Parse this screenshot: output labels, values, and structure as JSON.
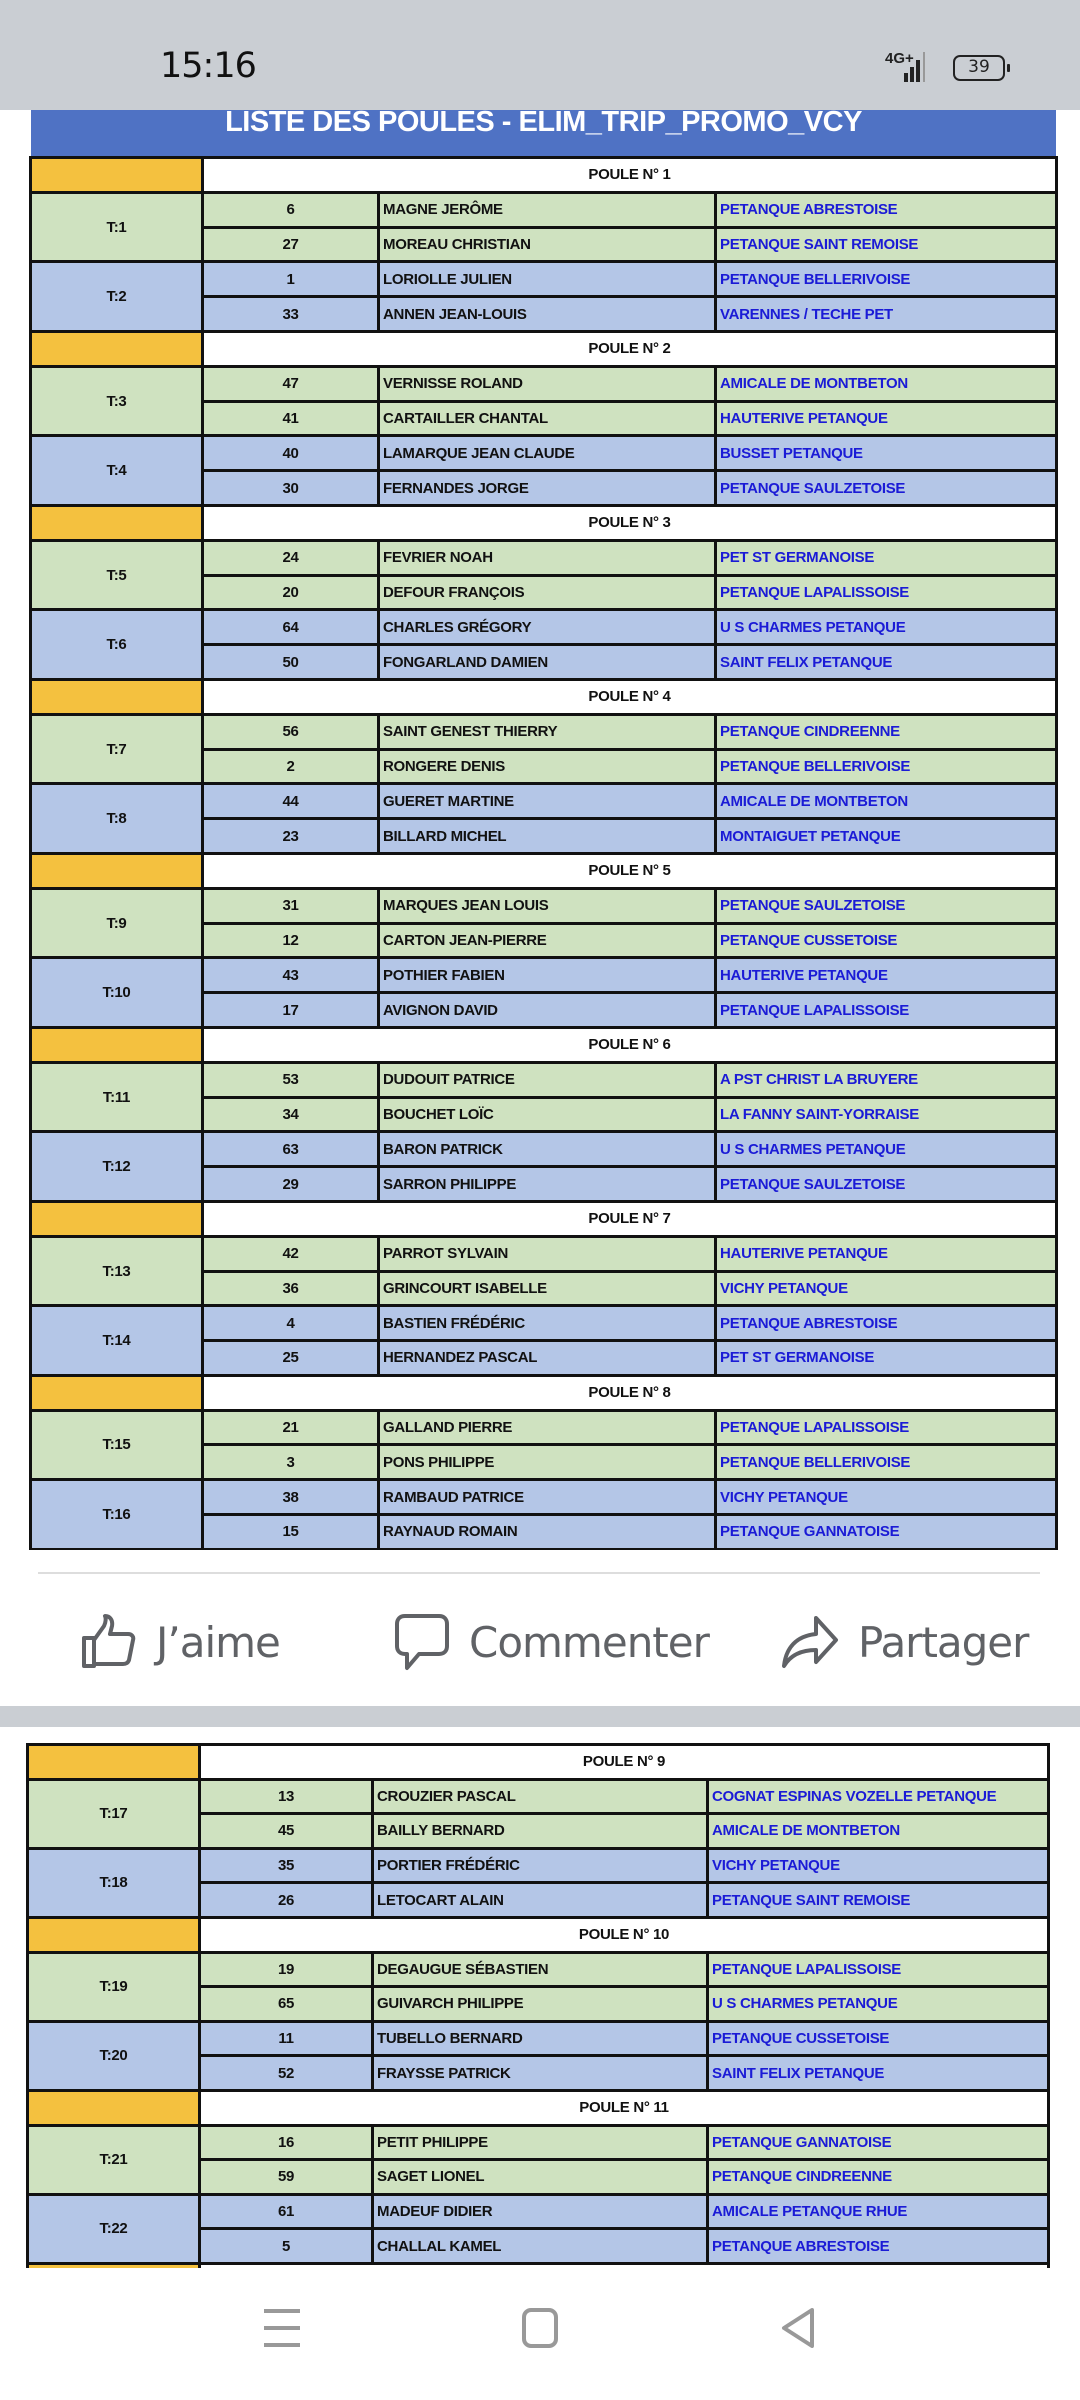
{
  "status_bar": {
    "time": "15:16",
    "network": "4G+",
    "battery": "39"
  },
  "sheet_title": "LISTE DES POULES - ELIM_TRIP_PROMO_VCY",
  "colors": {
    "banner": "#4f72c4",
    "poule_marker": "#f4c13f",
    "team_odd": "#cfe2c0",
    "team_even": "#b4c6e7",
    "club_text": "#1b1bd6"
  },
  "post1": {
    "poules": [
      {
        "label": "POULE N° 1",
        "teams": [
          {
            "table": "T:1",
            "players": [
              {
                "num": "6",
                "name": "MAGNE JERÔME",
                "club": "PETANQUE ABRESTOISE"
              },
              {
                "num": "27",
                "name": "MOREAU CHRISTIAN",
                "club": "PETANQUE SAINT REMOISE"
              }
            ]
          },
          {
            "table": "T:2",
            "players": [
              {
                "num": "1",
                "name": "LORIOLLE JULIEN",
                "club": "PETANQUE BELLERIVOISE"
              },
              {
                "num": "33",
                "name": "ANNEN JEAN-LOUIS",
                "club": "VARENNES / TECHE PET"
              }
            ]
          }
        ]
      },
      {
        "label": "POULE N° 2",
        "teams": [
          {
            "table": "T:3",
            "players": [
              {
                "num": "47",
                "name": "VERNISSE ROLAND",
                "club": "AMICALE DE MONTBETON"
              },
              {
                "num": "41",
                "name": "CARTAILLER CHANTAL",
                "club": "HAUTERIVE PETANQUE"
              }
            ]
          },
          {
            "table": "T:4",
            "players": [
              {
                "num": "40",
                "name": "LAMARQUE JEAN CLAUDE",
                "club": "BUSSET PETANQUE"
              },
              {
                "num": "30",
                "name": "FERNANDES JORGE",
                "club": "PETANQUE SAULZETOISE"
              }
            ]
          }
        ]
      },
      {
        "label": "POULE N° 3",
        "teams": [
          {
            "table": "T:5",
            "players": [
              {
                "num": "24",
                "name": "FEVRIER NOAH",
                "club": "PET ST GERMANOISE"
              },
              {
                "num": "20",
                "name": "DEFOUR FRANÇOIS",
                "club": "PETANQUE LAPALISSOISE"
              }
            ]
          },
          {
            "table": "T:6",
            "players": [
              {
                "num": "64",
                "name": "CHARLES GRÉGORY",
                "club": "U S CHARMES PETANQUE"
              },
              {
                "num": "50",
                "name": "FONGARLAND DAMIEN",
                "club": "SAINT FELIX PETANQUE"
              }
            ]
          }
        ]
      },
      {
        "label": "POULE N° 4",
        "teams": [
          {
            "table": "T:7",
            "players": [
              {
                "num": "56",
                "name": "SAINT GENEST THIERRY",
                "club": "PETANQUE CINDREENNE"
              },
              {
                "num": "2",
                "name": "RONGERE DENIS",
                "club": "PETANQUE BELLERIVOISE"
              }
            ]
          },
          {
            "table": "T:8",
            "players": [
              {
                "num": "44",
                "name": "GUERET MARTINE",
                "club": "AMICALE DE MONTBETON"
              },
              {
                "num": "23",
                "name": "BILLARD MICHEL",
                "club": "MONTAIGUET PETANQUE"
              }
            ]
          }
        ]
      },
      {
        "label": "POULE N° 5",
        "teams": [
          {
            "table": "T:9",
            "players": [
              {
                "num": "31",
                "name": "MARQUES JEAN LOUIS",
                "club": "PETANQUE SAULZETOISE"
              },
              {
                "num": "12",
                "name": "CARTON JEAN-PIERRE",
                "club": "PETANQUE CUSSETOISE"
              }
            ]
          },
          {
            "table": "T:10",
            "players": [
              {
                "num": "43",
                "name": "POTHIER FABIEN",
                "club": "HAUTERIVE PETANQUE"
              },
              {
                "num": "17",
                "name": "AVIGNON DAVID",
                "club": "PETANQUE LAPALISSOISE"
              }
            ]
          }
        ]
      },
      {
        "label": "POULE N° 6",
        "teams": [
          {
            "table": "T:11",
            "players": [
              {
                "num": "53",
                "name": "DUDOUIT PATRICE",
                "club": "A PST CHRIST LA BRUYERE"
              },
              {
                "num": "34",
                "name": "BOUCHET LOÏC",
                "club": "LA FANNY SAINT-YORRAISE"
              }
            ]
          },
          {
            "table": "T:12",
            "players": [
              {
                "num": "63",
                "name": "BARON PATRICK",
                "club": "U S CHARMES PETANQUE"
              },
              {
                "num": "29",
                "name": "SARRON PHILIPPE",
                "club": "PETANQUE SAULZETOISE"
              }
            ]
          }
        ]
      },
      {
        "label": "POULE N° 7",
        "teams": [
          {
            "table": "T:13",
            "players": [
              {
                "num": "42",
                "name": "PARROT SYLVAIN",
                "club": "HAUTERIVE PETANQUE"
              },
              {
                "num": "36",
                "name": "GRINCOURT ISABELLE",
                "club": "VICHY PETANQUE"
              }
            ]
          },
          {
            "table": "T:14",
            "players": [
              {
                "num": "4",
                "name": "BASTIEN FRÉDÉRIC",
                "club": "PETANQUE ABRESTOISE"
              },
              {
                "num": "25",
                "name": "HERNANDEZ PASCAL",
                "club": "PET ST GERMANOISE"
              }
            ]
          }
        ]
      },
      {
        "label": "POULE N° 8",
        "teams": [
          {
            "table": "T:15",
            "players": [
              {
                "num": "21",
                "name": "GALLAND PIERRE",
                "club": "PETANQUE LAPALISSOISE"
              },
              {
                "num": "3",
                "name": "PONS PHILIPPE",
                "club": "PETANQUE BELLERIVOISE"
              }
            ]
          },
          {
            "table": "T:16",
            "players": [
              {
                "num": "38",
                "name": "RAMBAUD PATRICE",
                "club": "VICHY PETANQUE"
              },
              {
                "num": "15",
                "name": "RAYNAUD ROMAIN",
                "club": "PETANQUE GANNATOISE"
              }
            ]
          }
        ]
      }
    ]
  },
  "actions": {
    "like": "J’aime",
    "comment": "Commenter",
    "share": "Partager"
  },
  "post2": {
    "poules": [
      {
        "label": "POULE N° 9",
        "teams": [
          {
            "table": "T:17",
            "players": [
              {
                "num": "13",
                "name": "CROUZIER PASCAL",
                "club": "COGNAT ESPINAS VOZELLE PETANQUE"
              },
              {
                "num": "45",
                "name": "BAILLY BERNARD",
                "club": "AMICALE DE MONTBETON"
              }
            ]
          },
          {
            "table": "T:18",
            "players": [
              {
                "num": "35",
                "name": "PORTIER FRÉDÉRIC",
                "club": "VICHY PETANQUE"
              },
              {
                "num": "26",
                "name": "LETOCART ALAIN",
                "club": "PETANQUE SAINT REMOISE"
              }
            ]
          }
        ]
      },
      {
        "label": "POULE N° 10",
        "teams": [
          {
            "table": "T:19",
            "players": [
              {
                "num": "19",
                "name": "DEGAUGUE SÉBASTIEN",
                "club": "PETANQUE LAPALISSOISE"
              },
              {
                "num": "65",
                "name": "GUIVARCH PHILIPPE",
                "club": "U S CHARMES PETANQUE"
              }
            ]
          },
          {
            "table": "T:20",
            "players": [
              {
                "num": "11",
                "name": "TUBELLO BERNARD",
                "club": "PETANQUE CUSSETOISE"
              },
              {
                "num": "52",
                "name": "FRAYSSE PATRICK",
                "club": "SAINT FELIX PETANQUE"
              }
            ]
          }
        ]
      },
      {
        "label": "POULE N° 11",
        "teams": [
          {
            "table": "T:21",
            "players": [
              {
                "num": "16",
                "name": "PETIT PHILIPPE",
                "club": "PETANQUE GANNATOISE"
              },
              {
                "num": "59",
                "name": "SAGET LIONEL",
                "club": "PETANQUE CINDREENNE"
              }
            ]
          },
          {
            "table": "T:22",
            "players": [
              {
                "num": "61",
                "name": "MADEUF DIDIER",
                "club": "AMICALE PETANQUE RHUE"
              },
              {
                "num": "5",
                "name": "CHALLAL KAMEL",
                "club": "PETANQUE ABRESTOISE"
              }
            ]
          }
        ]
      }
    ]
  }
}
